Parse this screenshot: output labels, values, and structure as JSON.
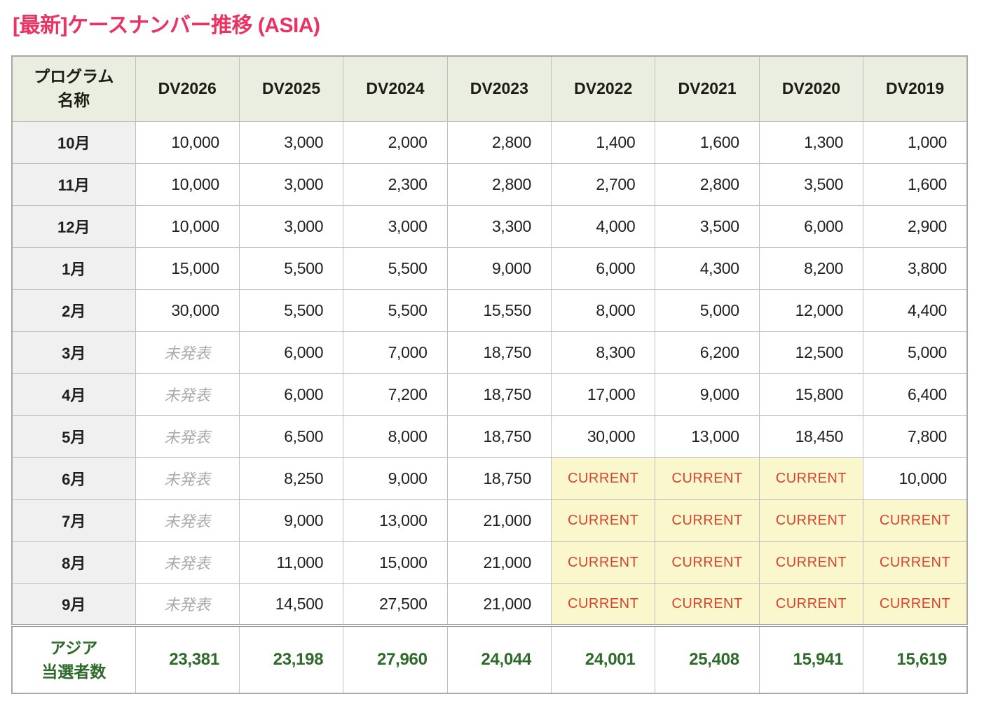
{
  "title": "[最新]ケースナンバー推移 (ASIA)",
  "chart_data": {
    "type": "table",
    "title": "[最新]ケースナンバー推移 (ASIA)",
    "corner_header_lines": [
      "プログラム",
      "名称"
    ],
    "columns": [
      "DV2026",
      "DV2025",
      "DV2024",
      "DV2023",
      "DV2022",
      "DV2021",
      "DV2020",
      "DV2019"
    ],
    "special_values": {
      "unannounced": "未発表",
      "current": "CURRENT"
    },
    "rows": [
      {
        "month": "10月",
        "values": [
          "10,000",
          "3,000",
          "2,000",
          "2,800",
          "1,400",
          "1,600",
          "1,300",
          "1,000"
        ]
      },
      {
        "month": "11月",
        "values": [
          "10,000",
          "3,000",
          "2,300",
          "2,800",
          "2,700",
          "2,800",
          "3,500",
          "1,600"
        ]
      },
      {
        "month": "12月",
        "values": [
          "10,000",
          "3,000",
          "3,000",
          "3,300",
          "4,000",
          "3,500",
          "6,000",
          "2,900"
        ]
      },
      {
        "month": "1月",
        "values": [
          "15,000",
          "5,500",
          "5,500",
          "9,000",
          "6,000",
          "4,300",
          "8,200",
          "3,800"
        ]
      },
      {
        "month": "2月",
        "values": [
          "30,000",
          "5,500",
          "5,500",
          "15,550",
          "8,000",
          "5,000",
          "12,000",
          "4,400"
        ]
      },
      {
        "month": "3月",
        "values": [
          "未発表",
          "6,000",
          "7,000",
          "18,750",
          "8,300",
          "6,200",
          "12,500",
          "5,000"
        ]
      },
      {
        "month": "4月",
        "values": [
          "未発表",
          "6,000",
          "7,200",
          "18,750",
          "17,000",
          "9,000",
          "15,800",
          "6,400"
        ]
      },
      {
        "month": "5月",
        "values": [
          "未発表",
          "6,500",
          "8,000",
          "18,750",
          "30,000",
          "13,000",
          "18,450",
          "7,800"
        ]
      },
      {
        "month": "6月",
        "values": [
          "未発表",
          "8,250",
          "9,000",
          "18,750",
          "CURRENT",
          "CURRENT",
          "CURRENT",
          "10,000"
        ]
      },
      {
        "month": "7月",
        "values": [
          "未発表",
          "9,000",
          "13,000",
          "21,000",
          "CURRENT",
          "CURRENT",
          "CURRENT",
          "CURRENT"
        ]
      },
      {
        "month": "8月",
        "values": [
          "未発表",
          "11,000",
          "15,000",
          "21,000",
          "CURRENT",
          "CURRENT",
          "CURRENT",
          "CURRENT"
        ]
      },
      {
        "month": "9月",
        "values": [
          "未発表",
          "14,500",
          "27,500",
          "21,000",
          "CURRENT",
          "CURRENT",
          "CURRENT",
          "CURRENT"
        ]
      }
    ],
    "footer_label_lines": [
      "アジア",
      "当選者数"
    ],
    "footer_values": [
      "23,381",
      "23,198",
      "27,960",
      "24,044",
      "24,001",
      "25,408",
      "15,941",
      "15,619"
    ]
  },
  "colors": {
    "title_color": "#eb3263",
    "header_bg": "#e9eee1",
    "month_bg": "#f0f0f0",
    "current_bg": "#fbf7cd",
    "current_text": "#d9432f",
    "total_text": "#2e6b2b",
    "unannounced_text": "#a9a9a9",
    "text_color": "#1f1f1f",
    "border_outer": "#a8a8a8",
    "border_inner": "#c0c0c0",
    "border_double": "#999999"
  }
}
